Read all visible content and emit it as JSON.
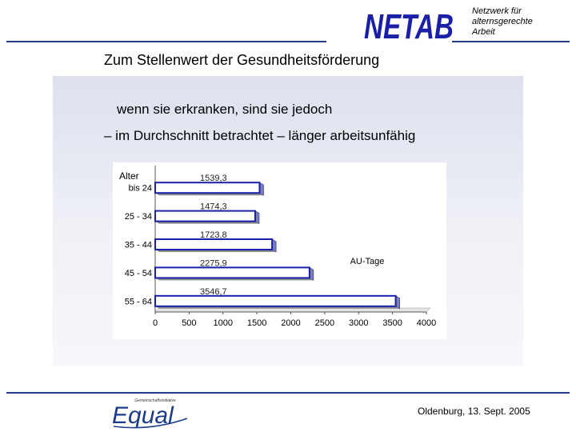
{
  "header": {
    "logo_text": "NETAB",
    "org_lines": [
      "Netzwerk für",
      "alternsgerechte",
      "Arbeit"
    ]
  },
  "slide": {
    "title": "Zum Stellenwert der Gesundheitsförderung",
    "subtitle_1": "wenn sie erkranken, sind sie jedoch",
    "subtitle_2": "– im Durchschnitt betrachtet – länger arbeitsunfähig"
  },
  "chart_data": {
    "type": "bar",
    "orientation": "horizontal",
    "categories": [
      "bis 24",
      "25 - 34",
      "35 - 44",
      "45 - 54",
      "55 - 64"
    ],
    "values": [
      1539.3,
      1474.3,
      1723.8,
      2275.9,
      3546.7
    ],
    "value_labels": [
      "1539,3",
      "1474,3",
      "1723,8",
      "2275,9",
      "3546,7"
    ],
    "title": "",
    "ylabel": "Alter",
    "xlabel": "AU-Tage",
    "xlim": [
      0,
      4000
    ],
    "x_ticks": [
      0,
      500,
      1000,
      1500,
      2000,
      2500,
      3000,
      3500,
      4000
    ],
    "bar_color": "#1a21a8",
    "bar_fill": "#ffffff",
    "legend": "none",
    "grid": false
  },
  "footer": {
    "logo_text": "Equal",
    "logo_small_text": "Gemeinschaftsinitiative",
    "date": "Oldenburg, 13. Sept. 2005"
  },
  "colors": {
    "brand_blue": "#1a1fa6",
    "line_blue": "#223d86"
  }
}
